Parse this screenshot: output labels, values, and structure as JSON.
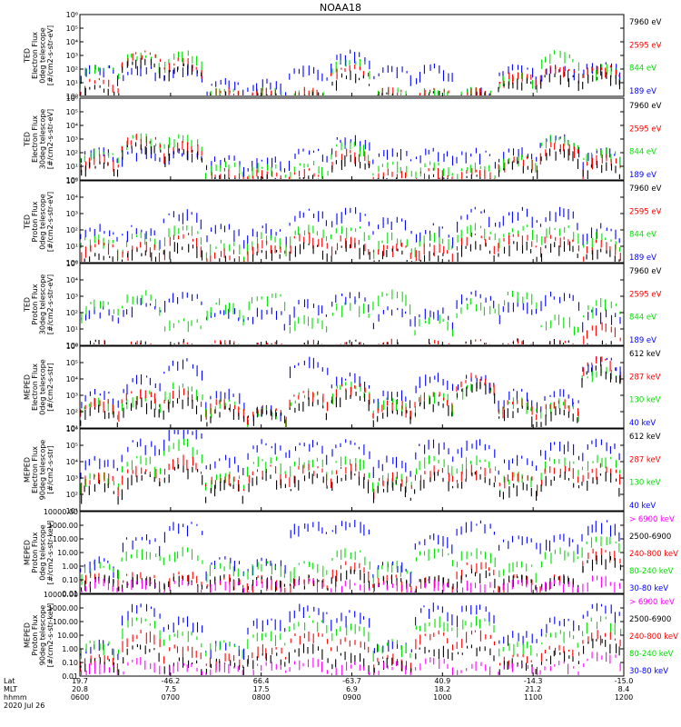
{
  "title": "NOAA18",
  "colors": {
    "blue": "#0000ff",
    "red": "#ff0000",
    "green": "#00e000",
    "black": "#000000",
    "magenta": "#ff00ff"
  },
  "panels": [
    {
      "id": "ted-e-0",
      "ylabel": [
        "TED",
        "Electron Flux",
        "0deg telescope",
        "[#/cm2-s-str-eV]"
      ],
      "ticks": [
        "10⁶",
        "10⁵",
        "10⁴",
        "10³",
        "10²",
        "10¹",
        "10⁰"
      ],
      "legend": [
        {
          "text": "7960 eV",
          "color": "#000000"
        },
        {
          "text": "2595 eV",
          "color": "#ff0000"
        },
        {
          "text": "844 eV",
          "color": "#00e000"
        },
        {
          "text": "189 eV",
          "color": "#0000ff"
        }
      ]
    },
    {
      "id": "ted-e-30",
      "ylabel": [
        "TED",
        "Electron Flux",
        "30deg telescope",
        "[#/cm2-s-str-eV]"
      ],
      "ticks": [
        "10⁶",
        "10⁵",
        "10⁴",
        "10³",
        "10²",
        "10¹",
        "10⁰"
      ],
      "legend": [
        {
          "text": "7960 eV",
          "color": "#000000"
        },
        {
          "text": "2595 eV",
          "color": "#ff0000"
        },
        {
          "text": "844 eV",
          "color": "#00e000"
        },
        {
          "text": "189 eV",
          "color": "#0000ff"
        }
      ]
    },
    {
      "id": "ted-p-0",
      "ylabel": [
        "TED",
        "Proton Flux",
        "0deg telescope",
        "[#/cm2-s-str-eV]"
      ],
      "ticks": [
        "10⁵",
        "10⁴",
        "10³",
        "10²",
        "10¹",
        "10⁰"
      ],
      "legend": [
        {
          "text": "7960 eV",
          "color": "#000000"
        },
        {
          "text": "2595 eV",
          "color": "#ff0000"
        },
        {
          "text": "844 eV",
          "color": "#00e000"
        },
        {
          "text": "189 eV",
          "color": "#0000ff"
        }
      ]
    },
    {
      "id": "ted-p-30",
      "ylabel": [
        "TED",
        "Proton Flux",
        "30deg telescope",
        "[#/cm2-s-str-eV]"
      ],
      "ticks": [
        "10⁵",
        "10⁴",
        "10³",
        "10²",
        "10¹",
        "10⁰"
      ],
      "legend": [
        {
          "text": "7960 eV",
          "color": "#000000"
        },
        {
          "text": "2595 eV",
          "color": "#ff0000"
        },
        {
          "text": "844 eV",
          "color": "#00e000"
        },
        {
          "text": "189 eV",
          "color": "#0000ff"
        }
      ]
    },
    {
      "id": "meped-e-0",
      "ylabel": [
        "MEPED",
        "Electron Flux",
        "0deg telescope",
        "[#/cm2-s-str]"
      ],
      "ticks": [
        "10⁶",
        "10⁵",
        "10⁴",
        "10³",
        "10²",
        "10¹"
      ],
      "legend": [
        {
          "text": "612 keV",
          "color": "#000000"
        },
        {
          "text": "287 keV",
          "color": "#ff0000"
        },
        {
          "text": "130 keV",
          "color": "#00e000"
        },
        {
          "text": "40 keV",
          "color": "#0000ff"
        }
      ]
    },
    {
      "id": "meped-e-90",
      "ylabel": [
        "MEPED",
        "Electron Flux",
        "90deg telescope",
        "[#/cm2-s-str]"
      ],
      "ticks": [
        "10⁶",
        "10⁵",
        "10⁴",
        "10³",
        "10²",
        "10¹"
      ],
      "legend": [
        {
          "text": "612 keV",
          "color": "#000000"
        },
        {
          "text": "287 keV",
          "color": "#ff0000"
        },
        {
          "text": "130 keV",
          "color": "#00e000"
        },
        {
          "text": "40 keV",
          "color": "#0000ff"
        }
      ]
    },
    {
      "id": "meped-p-0",
      "ylabel": [
        "MEPED",
        "Proton Flux",
        "0deg telescope",
        "[#/cm2-s-str-keV]"
      ],
      "ticks": [
        "10000.00",
        "1000.00",
        "100.00",
        "10.00",
        "1.00",
        "0.10",
        "0.01"
      ],
      "legend": [
        {
          "text": "> 6900 keV",
          "color": "#ff00ff"
        },
        {
          "text": "2500-6900",
          "color": "#000000"
        },
        {
          "text": "240-800 keV",
          "color": "#ff0000"
        },
        {
          "text": "80-240 keV",
          "color": "#00e000"
        },
        {
          "text": "30-80 keV",
          "color": "#0000ff"
        }
      ]
    },
    {
      "id": "meped-p-90",
      "ylabel": [
        "MEPED",
        "Proton Flux",
        "90deg telescope",
        "[#/cm2-s-str-keV]"
      ],
      "ticks": [
        "10000.00",
        "1000.00",
        "100.00",
        "10.00",
        "1.00",
        "0.10",
        "0.01"
      ],
      "legend": [
        {
          "text": "> 6900 keV",
          "color": "#ff00ff"
        },
        {
          "text": "2500-6900",
          "color": "#000000"
        },
        {
          "text": "240-800 keV",
          "color": "#ff0000"
        },
        {
          "text": "80-240 keV",
          "color": "#00e000"
        },
        {
          "text": "30-80 keV",
          "color": "#0000ff"
        }
      ]
    }
  ],
  "footer": {
    "row_labels": [
      "Lat",
      "MLT",
      "hhmm",
      "2020 Jul 26"
    ],
    "columns": [
      {
        "lat": "19.7",
        "mlt": "20.8",
        "hhmm": "0600"
      },
      {
        "lat": "-46.2",
        "mlt": "7.5",
        "hhmm": "0700"
      },
      {
        "lat": "66.4",
        "mlt": "17.5",
        "hhmm": "0800"
      },
      {
        "lat": "-63.7",
        "mlt": "6.9",
        "hhmm": "0900"
      },
      {
        "lat": "40.9",
        "mlt": "18.2",
        "hhmm": "1000"
      },
      {
        "lat": "-14.3",
        "mlt": "21.2",
        "hhmm": "1100"
      },
      {
        "lat": "-15.0",
        "mlt": "8.4",
        "hhmm": "1200"
      }
    ]
  },
  "chart_data": {
    "type": "line",
    "title": "NOAA18",
    "x_axis": {
      "label": "hhmm",
      "range": [
        "0600",
        "1200"
      ],
      "ticks": [
        "0600",
        "0700",
        "0800",
        "0900",
        "1000",
        "1100",
        "1200"
      ]
    },
    "panels": [
      {
        "name": "TED Electron Flux 0deg",
        "ylim": [
          1,
          1000000
        ],
        "log": true,
        "series": [
          {
            "name": "189 eV",
            "values": [
              100,
              100,
              100,
              8,
              8,
              100,
              1000,
              100,
              100,
              2,
              100,
              100,
              200
            ]
          },
          {
            "name": "844 eV",
            "values": [
              100,
              1000,
              1000,
              2,
              2,
              2,
              300,
              2,
              2,
              2,
              30,
              1000,
              100
            ]
          },
          {
            "name": "2595 eV",
            "values": [
              10,
              1000,
              300,
              2,
              2,
              2,
              100,
              2,
              2,
              2,
              30,
              100,
              100
            ]
          },
          {
            "name": "7960 eV",
            "values": [
              3,
              300,
              100,
              1,
              1,
              1,
              30,
              1,
              1,
              1,
              10,
              30,
              30
            ]
          }
        ]
      },
      {
        "name": "TED Electron Flux 30deg",
        "ylim": [
          1,
          1000000
        ],
        "log": true,
        "series": [
          {
            "name": "189 eV",
            "values": [
              100,
              100,
              100,
              30,
              30,
              100,
              1000,
              100,
              100,
              100,
              100,
              1000,
              100
            ]
          },
          {
            "name": "844 eV",
            "values": [
              100,
              1000,
              1000,
              10,
              10,
              10,
              300,
              10,
              10,
              10,
              30,
              1000,
              100
            ]
          },
          {
            "name": "2595 eV",
            "values": [
              30,
              1000,
              300,
              3,
              3,
              3,
              100,
              3,
              3,
              3,
              30,
              300,
              30
            ]
          },
          {
            "name": "7960 eV",
            "values": [
              10,
              300,
              100,
              1,
              1,
              1,
              30,
              1,
              1,
              1,
              10,
              100,
              10
            ]
          }
        ]
      },
      {
        "name": "TED Proton Flux 0deg",
        "ylim": [
          1,
          100000
        ],
        "log": true,
        "series": [
          {
            "name": "189 eV",
            "values": [
              100,
              100,
              1000,
              100,
              100,
              1000,
              1000,
              300,
              100,
              1000,
              1000,
              1000,
              100
            ]
          },
          {
            "name": "844 eV",
            "values": [
              30,
              30,
              100,
              10,
              30,
              100,
              100,
              30,
              30,
              100,
              100,
              100,
              30
            ]
          },
          {
            "name": "2595 eV",
            "values": [
              10,
              10,
              30,
              3,
              10,
              30,
              30,
              10,
              10,
              30,
              30,
              30,
              10
            ]
          },
          {
            "name": "7960 eV",
            "values": [
              3,
              3,
              10,
              1,
              3,
              10,
              10,
              3,
              3,
              10,
              10,
              10,
              3
            ]
          }
        ]
      },
      {
        "name": "TED Proton Flux 30deg",
        "ylim": [
          1,
          100000
        ],
        "log": true,
        "series": [
          {
            "name": "189 eV",
            "values": [
              100,
              300,
              1000,
              100,
              100,
              300,
              1000,
              100,
              100,
              1000,
              300,
              1000,
              100
            ]
          },
          {
            "name": "844 eV",
            "values": [
              300,
              1000,
              30,
              300,
              1000,
              30,
              300,
              1000,
              30,
              300,
              1000,
              30,
              300
            ]
          },
          {
            "name": "2595 eV",
            "values": [
              1,
              1,
              1,
              1,
              1,
              1,
              1,
              1,
              1,
              1,
              1,
              1,
              10
            ]
          },
          {
            "name": "7960 eV",
            "values": [
              1,
              1,
              1,
              1,
              1,
              1,
              1,
              1,
              1,
              1,
              1,
              1,
              1
            ]
          }
        ]
      },
      {
        "name": "MEPED Electron Flux 0deg",
        "ylim": [
          10,
          1000000
        ],
        "log": true,
        "series": [
          {
            "name": "40 keV",
            "values": [
              1000,
              10000,
              100000,
              1000,
              100,
              100000,
              10000,
              1000,
              10000,
              10000,
              1000,
              1000,
              100000
            ]
          },
          {
            "name": "130 keV",
            "values": [
              300,
              1000,
              3000,
              300,
              100,
              1000,
              3000,
              300,
              1000,
              3000,
              300,
              300,
              30000
            ]
          },
          {
            "name": "287 keV",
            "values": [
              300,
              1000,
              1000,
              300,
              100,
              1000,
              3000,
              300,
              1000,
              10000,
              300,
              300,
              100000
            ]
          },
          {
            "name": "612 keV",
            "values": [
              100,
              300,
              300,
              100,
              100,
              300,
              1000,
              100,
              300,
              3000,
              100,
              100,
              30000
            ]
          }
        ]
      },
      {
        "name": "MEPED Electron Flux 90deg",
        "ylim": [
          10,
          1000000
        ],
        "log": true,
        "series": [
          {
            "name": "40 keV",
            "values": [
              10000,
              100000,
              1000000,
              10000,
              100000,
              100000,
              100000,
              10000,
              100000,
              100000,
              10000,
              100000,
              100000
            ]
          },
          {
            "name": "130 keV",
            "values": [
              1000,
              10000,
              100000,
              1000,
              10000,
              10000,
              10000,
              1000,
              10000,
              10000,
              1000,
              10000,
              10000
            ]
          },
          {
            "name": "287 keV",
            "values": [
              1000,
              3000,
              10000,
              1000,
              3000,
              3000,
              3000,
              1000,
              3000,
              3000,
              1000,
              3000,
              3000
            ]
          },
          {
            "name": "612 keV",
            "values": [
              300,
              1000,
              3000,
              300,
              1000,
              1000,
              1000,
              300,
              1000,
              1000,
              300,
              1000,
              1000
            ]
          }
        ]
      },
      {
        "name": "MEPED Proton Flux 0deg",
        "ylim": [
          0.01,
          10000
        ],
        "log": true,
        "series": [
          {
            "name": "30-80 keV",
            "values": [
              2,
              100,
              1000,
              2,
              2,
              1000,
              1000,
              1,
              100,
              1000,
              100,
              100,
              1000
            ]
          },
          {
            "name": "80-240 keV",
            "values": [
              1,
              10,
              10,
              1,
              1,
              1,
              10,
              1,
              10,
              10,
              1,
              10,
              100
            ]
          },
          {
            "name": "240-800 keV",
            "values": [
              0.2,
              0.2,
              0.2,
              0.1,
              0.1,
              0.1,
              1,
              0.1,
              0.1,
              1,
              0.1,
              0.1,
              10
            ]
          },
          {
            "name": "2500-6900",
            "values": [
              0.1,
              0.1,
              0.1,
              0.1,
              0.1,
              0.1,
              0.3,
              0.1,
              0.1,
              0.3,
              0.1,
              0.1,
              3
            ]
          },
          {
            "name": "> 6900 keV",
            "values": [
              0.05,
              0.05,
              0.05,
              0.05,
              0.05,
              0.05,
              0.05,
              0.05,
              0.05,
              0.05,
              0.05,
              0.05,
              0.1
            ]
          }
        ]
      },
      {
        "name": "MEPED Proton Flux 90deg",
        "ylim": [
          0.01,
          10000
        ],
        "log": true,
        "series": [
          {
            "name": "30-80 keV",
            "values": [
              2,
              1000,
              100,
              2,
              100,
              1000,
              300,
              2,
              1000,
              1000,
              10,
              100,
              1000
            ]
          },
          {
            "name": "80-240 keV",
            "values": [
              2,
              100,
              10,
              2,
              10,
              100,
              30,
              2,
              100,
              100,
              2,
              10,
              100
            ]
          },
          {
            "name": "240-800 keV",
            "values": [
              0.2,
              10,
              1,
              0.2,
              1,
              10,
              3,
              0.2,
              10,
              10,
              0.2,
              1,
              10
            ]
          },
          {
            "name": "2500-6900",
            "values": [
              0.1,
              1,
              0.1,
              0.1,
              0.3,
              1,
              0.3,
              0.1,
              1,
              1,
              0.1,
              0.3,
              3
            ]
          },
          {
            "name": "> 6900 keV",
            "values": [
              0.05,
              0.1,
              0.05,
              0.05,
              0.05,
              0.1,
              0.05,
              0.05,
              0.1,
              0.05,
              0.05,
              0.05,
              0.3
            ]
          }
        ]
      }
    ]
  }
}
